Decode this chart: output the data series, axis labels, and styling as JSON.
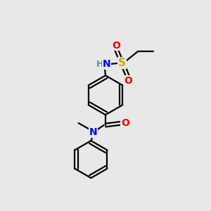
{
  "background_color": "#e8e8e8",
  "atom_colors": {
    "C": "#000000",
    "N": "#0000ff",
    "O": "#ff0000",
    "S": "#ccaa00",
    "H": "#5a9090"
  },
  "font_size": 10,
  "bond_color": "#000000",
  "bond_lw": 1.6,
  "figsize": [
    3.0,
    3.0
  ],
  "dpi": 100,
  "xlim": [
    0,
    10
  ],
  "ylim": [
    0,
    10
  ]
}
